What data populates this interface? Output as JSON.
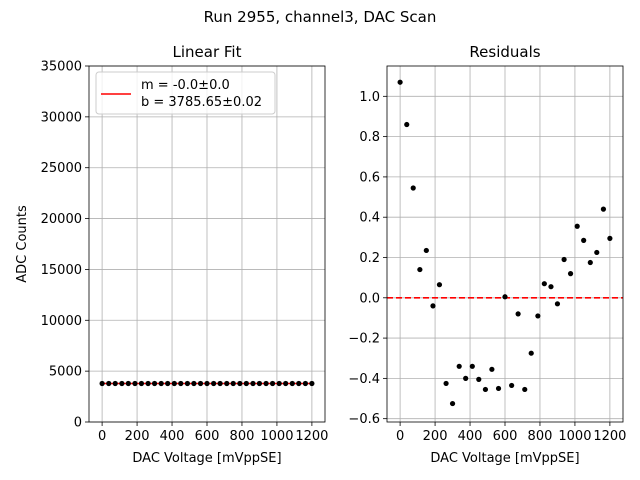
{
  "chart_data": [
    {
      "type": "scatter",
      "suptitle": "Run 2955, channel3, DAC Scan",
      "title": "Linear Fit",
      "xlabel": "DAC Voltage [mVppSE]",
      "ylabel": "ADC Counts",
      "xlim": [
        -75,
        1275
      ],
      "ylim": [
        0,
        35000
      ],
      "xticks": [
        0,
        200,
        400,
        600,
        800,
        1000,
        1200
      ],
      "xtick_labels": [
        "0",
        "200",
        "400",
        "600",
        "800",
        "1000",
        "1200"
      ],
      "yticks": [
        0,
        5000,
        10000,
        15000,
        20000,
        25000,
        30000,
        35000
      ],
      "ytick_labels": [
        "0",
        "5000",
        "10000",
        "15000",
        "20000",
        "25000",
        "30000",
        "35000"
      ],
      "grid": true,
      "legend_position": "top-left",
      "legend": {
        "label_m": "m = -0.0±0.0",
        "label_b": "b = 3785.65±0.02",
        "line_color": "#ff0000"
      },
      "fit_line": {
        "color": "#ff0000",
        "slope": 0.0,
        "intercept": 3785.65
      },
      "series": [
        {
          "name": "data",
          "color": "#000000",
          "x": [
            0,
            38,
            75,
            113,
            150,
            188,
            225,
            263,
            300,
            338,
            375,
            413,
            450,
            488,
            525,
            563,
            600,
            638,
            675,
            713,
            750,
            788,
            825,
            863,
            900,
            938,
            975,
            1013,
            1050,
            1088,
            1125,
            1163,
            1200
          ],
          "y": [
            3785.65,
            3785.65,
            3785.65,
            3785.65,
            3785.65,
            3785.65,
            3785.65,
            3785.65,
            3785.65,
            3785.65,
            3785.65,
            3785.65,
            3785.65,
            3785.65,
            3785.65,
            3785.65,
            3785.65,
            3785.65,
            3785.65,
            3785.65,
            3785.65,
            3785.65,
            3785.65,
            3785.65,
            3785.65,
            3785.65,
            3785.65,
            3785.65,
            3785.65,
            3785.65,
            3785.65,
            3785.65,
            3785.65
          ]
        }
      ]
    },
    {
      "type": "scatter",
      "title": "Residuals",
      "xlabel": "DAC Voltage [mVppSE]",
      "ylabel": "",
      "xlim": [
        -75,
        1275
      ],
      "ylim": [
        -0.6165,
        1.1505
      ],
      "xticks": [
        0,
        200,
        400,
        600,
        800,
        1000,
        1200
      ],
      "xtick_labels": [
        "0",
        "200",
        "400",
        "600",
        "800",
        "1000",
        "1200"
      ],
      "yticks": [
        -0.6,
        -0.4,
        -0.2,
        0.0,
        0.2,
        0.4,
        0.6,
        0.8,
        1.0
      ],
      "ytick_labels": [
        "−0.6",
        "−0.4",
        "−0.2",
        "0.0",
        "0.2",
        "0.4",
        "0.6",
        "0.8",
        "1.0"
      ],
      "grid": true,
      "zero_line": {
        "value": 0.0,
        "color": "#ff0000",
        "style": "dashed"
      },
      "series": [
        {
          "name": "residuals",
          "color": "#000000",
          "x": [
            0,
            38,
            75,
            113,
            150,
            188,
            225,
            263,
            300,
            338,
            375,
            413,
            450,
            488,
            525,
            563,
            600,
            638,
            675,
            713,
            750,
            788,
            825,
            863,
            900,
            938,
            975,
            1013,
            1050,
            1088,
            1125,
            1163,
            1200
          ],
          "y": [
            1.07,
            0.86,
            0.545,
            0.14,
            0.235,
            -0.04,
            0.065,
            -0.425,
            -0.525,
            -0.34,
            -0.4,
            -0.34,
            -0.405,
            -0.455,
            -0.355,
            -0.45,
            0.005,
            -0.435,
            -0.08,
            -0.455,
            -0.275,
            -0.09,
            0.07,
            0.055,
            -0.03,
            0.19,
            0.12,
            0.355,
            0.285,
            0.175,
            0.225,
            0.44,
            0.295
          ]
        }
      ]
    }
  ]
}
